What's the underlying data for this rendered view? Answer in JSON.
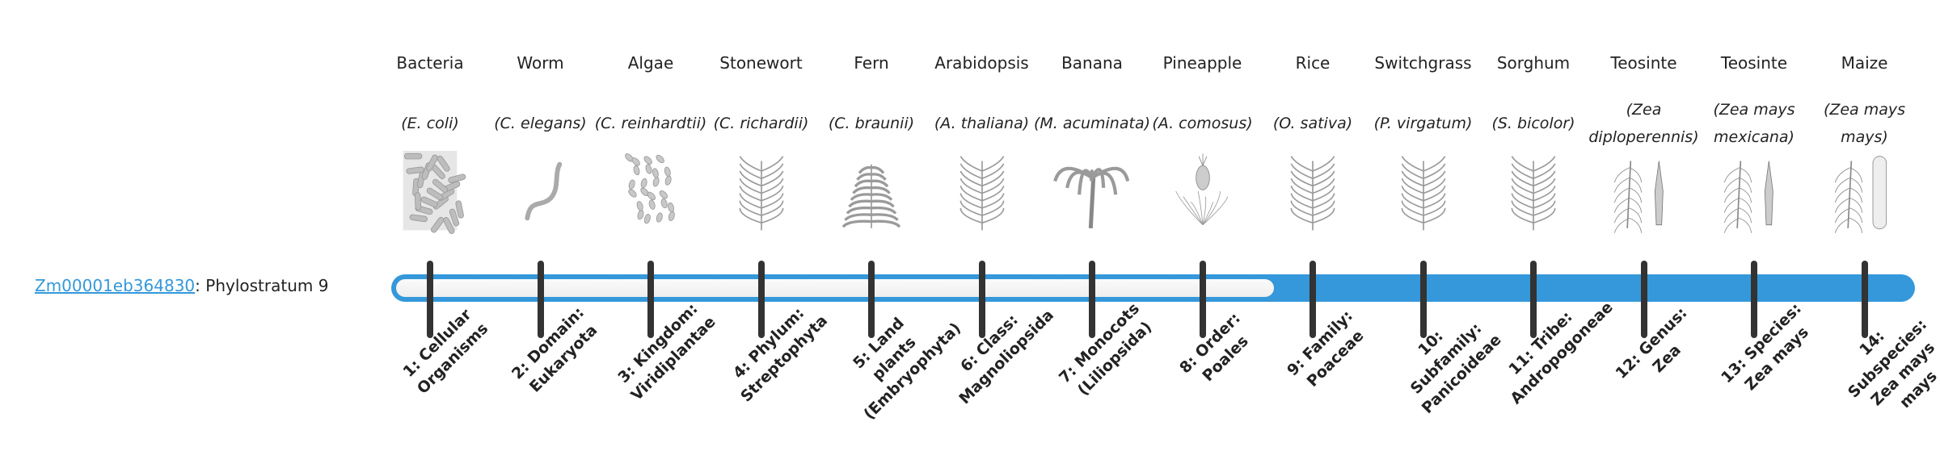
{
  "gene": {
    "id": "Zm00001eb364830",
    "separator": ":",
    "label": " Phylostratum 9"
  },
  "phylostratum": {
    "value": 9,
    "total": 14
  },
  "colors": {
    "accent": "#3498db",
    "tick": "#333333",
    "track": "#f5f5f5"
  },
  "organisms": [
    {
      "common": "Bacteria",
      "scientific": "(E. coli)",
      "icon": "bacteria-rods"
    },
    {
      "common": "Worm",
      "scientific": "(C. elegans)",
      "icon": "worm"
    },
    {
      "common": "Algae",
      "scientific": "(C. reinhardtii)",
      "icon": "algae-cells"
    },
    {
      "common": "Stonewort",
      "scientific": "(C. richardii)",
      "icon": "stonewort"
    },
    {
      "common": "Fern",
      "scientific": "(C. braunii)",
      "icon": "fern"
    },
    {
      "common": "Arabidopsis",
      "scientific": "(A. thaliana)",
      "icon": "arabidopsis"
    },
    {
      "common": "Banana",
      "scientific": "(M. acuminata)",
      "icon": "banana-tree"
    },
    {
      "common": "Pineapple",
      "scientific": "(A. comosus)",
      "icon": "pineapple"
    },
    {
      "common": "Rice",
      "scientific": "(O. sativa)",
      "icon": "rice"
    },
    {
      "common": "Switchgrass",
      "scientific": "(P. virgatum)",
      "icon": "switchgrass"
    },
    {
      "common": "Sorghum",
      "scientific": "(S. bicolor)",
      "icon": "sorghum"
    },
    {
      "common": "Teosinte",
      "scientific": "(Zea diploperennis)",
      "icon": "teosinte"
    },
    {
      "common": "Teosinte",
      "scientific": "(Zea mays mexicana)",
      "icon": "teosinte"
    },
    {
      "common": "Maize",
      "scientific": "(Zea mays mays)",
      "icon": "maize"
    }
  ],
  "strata": [
    "1: Cellular Organisms",
    "2: Domain: Eukaryota",
    "3: Kingdom: Viridiplantae",
    "4: Phylum: Streptophyta",
    "5: Land plants (Embryophyta)",
    "6: Class: Magnoliopsida",
    "7: Monocots (Liliopsida)",
    "8: Order: Poales",
    "9: Family: Poaceae",
    "10: Subfamily: Panicoideae",
    "11: Tribe: Andropogoneae",
    "12: Genus: Zea",
    "13: Species: Zea mays",
    "14: Subspecies: Zea mays mays"
  ]
}
